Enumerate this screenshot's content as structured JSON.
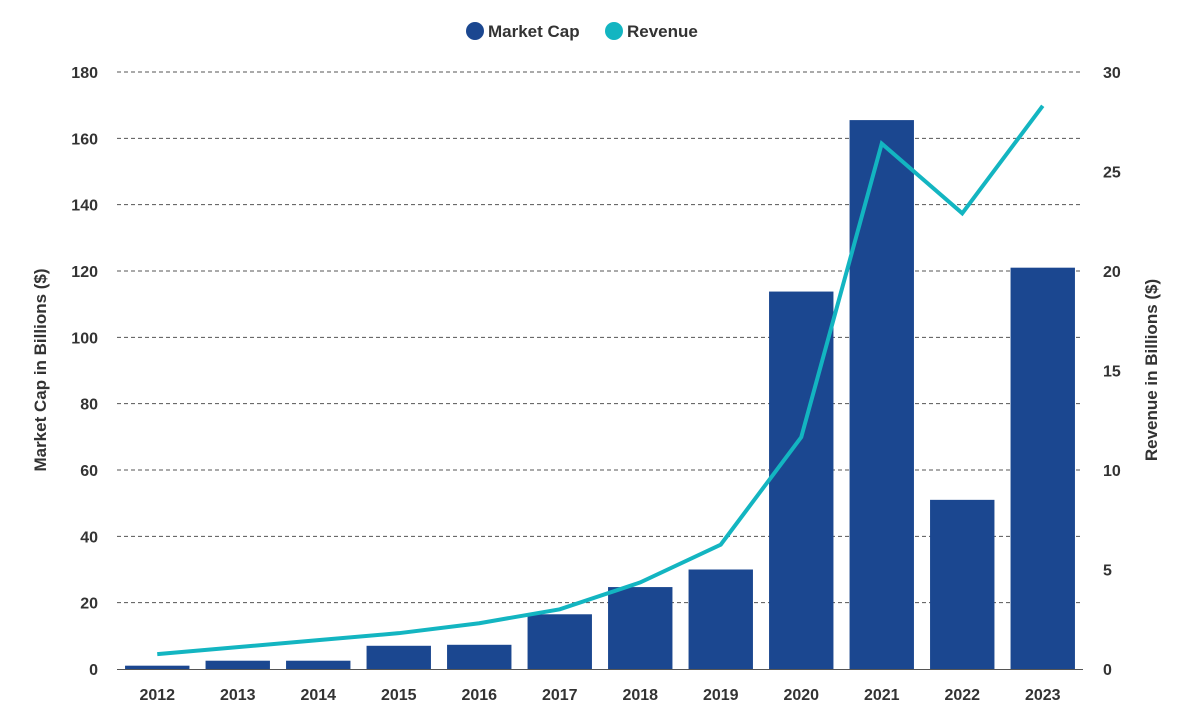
{
  "chart_data": {
    "type": "bar",
    "title": "",
    "categories": [
      "2012",
      "2013",
      "2014",
      "2015",
      "2016",
      "2017",
      "2018",
      "2019",
      "2020",
      "2021",
      "2022",
      "2023"
    ],
    "series": [
      {
        "name": "Market Cap",
        "type": "bar",
        "axis": "left",
        "color": "#1b4790",
        "values": [
          1,
          2.5,
          2.5,
          7,
          7.3,
          16.5,
          24.7,
          30,
          113.8,
          165.5,
          51,
          121
        ]
      },
      {
        "name": "Revenue",
        "type": "line",
        "axis": "right",
        "color": "#13b5c1",
        "values": [
          0.75,
          1.1,
          1.45,
          1.8,
          2.3,
          3.0,
          4.35,
          6.25,
          11.65,
          26.4,
          22.9,
          28.3
        ]
      }
    ],
    "ylabel": "Market Cap in Billions ($)",
    "y2label": "Revenue in Billions ($)",
    "ylim": [
      0,
      180
    ],
    "y2lim": [
      0,
      30
    ],
    "yticks": [
      "0",
      "20",
      "40",
      "60",
      "80",
      "100",
      "120",
      "140",
      "160",
      "180"
    ],
    "y2ticks": [
      "0",
      "5",
      "10",
      "15",
      "20",
      "25",
      "30"
    ],
    "grid": true,
    "legend": {
      "position": "top-center",
      "entries": [
        "Market Cap",
        "Revenue"
      ]
    }
  }
}
